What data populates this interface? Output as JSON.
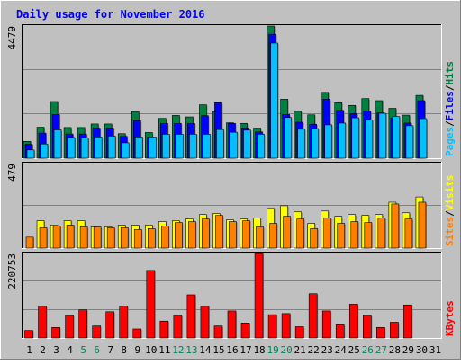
{
  "title": "Daily usage for November 2016",
  "colors": {
    "bg": "#c0c0c0",
    "title": "#0000ff",
    "hits": "#008040",
    "files": "#0000ff",
    "pages": "#00c0ff",
    "visits": "#ffff00",
    "sites": "#ff8000",
    "kbytes": "#ff0000",
    "grid": "#808080"
  },
  "chart_data": [
    {
      "type": "bar",
      "panel": "hits-files-pages",
      "ymax_label": "4479",
      "ylim": [
        0,
        4479
      ],
      "series_labels": {
        "pages": "Pages",
        "files": "Files",
        "hits": "Hits"
      },
      "categories": [
        "1",
        "2",
        "3",
        "4",
        "5",
        "6",
        "7",
        "8",
        "9",
        "10",
        "11",
        "12",
        "13",
        "14",
        "15",
        "16",
        "17",
        "18",
        "19",
        "20",
        "21",
        "22",
        "23",
        "24",
        "25",
        "26",
        "27",
        "28",
        "29",
        "30",
        "31"
      ],
      "series": [
        {
          "name": "Hits",
          "values": [
            570,
            1050,
            1920,
            1040,
            1040,
            1160,
            1160,
            830,
            1580,
            870,
            1350,
            1450,
            1400,
            1810,
            1580,
            1200,
            1180,
            1020,
            4479,
            2000,
            1590,
            1470,
            2230,
            1880,
            1790,
            2020,
            1950,
            1690,
            1460,
            2130,
            0
          ]
        },
        {
          "name": "Files",
          "values": [
            470,
            850,
            1480,
            820,
            820,
            1020,
            1020,
            740,
            1270,
            710,
            1180,
            1180,
            1180,
            1440,
            1880,
            1180,
            1020,
            890,
            4200,
            1480,
            1220,
            1150,
            2000,
            1620,
            1510,
            1590,
            1540,
            1360,
            1190,
            1950,
            0
          ]
        },
        {
          "name": "Pages",
          "values": [
            280,
            480,
            960,
            700,
            690,
            720,
            750,
            520,
            720,
            720,
            810,
            810,
            810,
            810,
            970,
            880,
            950,
            810,
            3900,
            1380,
            980,
            1000,
            1130,
            1190,
            1370,
            1300,
            1520,
            1410,
            1100,
            1340,
            0
          ]
        }
      ]
    },
    {
      "type": "bar",
      "panel": "visits-sites",
      "ymax_label": "479",
      "ylim": [
        0,
        479
      ],
      "series_labels": {
        "sites": "Sites",
        "visits": "Visits"
      },
      "categories": [
        "1",
        "2",
        "3",
        "4",
        "5",
        "6",
        "7",
        "8",
        "9",
        "10",
        "11",
        "12",
        "13",
        "14",
        "15",
        "16",
        "17",
        "18",
        "19",
        "20",
        "21",
        "22",
        "23",
        "24",
        "25",
        "26",
        "27",
        "28",
        "29",
        "30",
        "31"
      ],
      "series": [
        {
          "name": "Visits",
          "values": [
            0,
            155,
            130,
            155,
            155,
            120,
            120,
            130,
            130,
            130,
            150,
            155,
            165,
            190,
            195,
            160,
            165,
            170,
            225,
            240,
            205,
            140,
            210,
            180,
            190,
            185,
            190,
            260,
            200,
            290,
            0
          ]
        },
        {
          "name": "Sites",
          "values": [
            62,
            115,
            125,
            130,
            120,
            120,
            115,
            115,
            105,
            110,
            125,
            145,
            150,
            165,
            185,
            150,
            155,
            120,
            140,
            180,
            165,
            110,
            170,
            140,
            150,
            145,
            170,
            250,
            165,
            260,
            0
          ]
        }
      ]
    },
    {
      "type": "bar",
      "panel": "kbytes",
      "ymax_label": "220753",
      "ylim": [
        0,
        220753
      ],
      "series_labels": {
        "kbytes": "KBytes"
      },
      "categories": [
        "1",
        "2",
        "3",
        "4",
        "5",
        "6",
        "7",
        "8",
        "9",
        "10",
        "11",
        "12",
        "13",
        "14",
        "15",
        "16",
        "17",
        "18",
        "19",
        "20",
        "21",
        "22",
        "23",
        "24",
        "25",
        "26",
        "27",
        "28",
        "29",
        "30",
        "31"
      ],
      "series": [
        {
          "name": "KBytes",
          "values": [
            20000,
            85000,
            28000,
            60000,
            75000,
            32000,
            70000,
            85000,
            24000,
            180000,
            45000,
            60000,
            115000,
            85000,
            32000,
            72000,
            40000,
            225000,
            62000,
            65000,
            30000,
            118000,
            72000,
            35000,
            90000,
            60000,
            28000,
            42000,
            88000,
            0,
            0
          ]
        }
      ]
    }
  ],
  "x_labels": [
    "1",
    "2",
    "3",
    "4",
    "5",
    "6",
    "7",
    "8",
    "9",
    "10",
    "11",
    "12",
    "13",
    "14",
    "15",
    "16",
    "17",
    "18",
    "19",
    "20",
    "21",
    "22",
    "23",
    "24",
    "25",
    "26",
    "27",
    "28",
    "29",
    "30",
    "31"
  ],
  "weekend_days": [
    "5",
    "6",
    "12",
    "13",
    "19",
    "20",
    "26",
    "27"
  ]
}
